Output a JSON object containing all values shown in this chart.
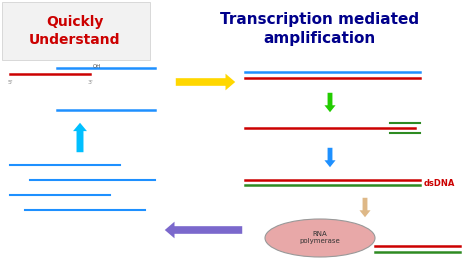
{
  "title": "Transcription mediated\namplification",
  "title_color": "#00008B",
  "title_fontsize": 11,
  "bg_color": "#FFFFFF",
  "quickly_understand": "Quickly\nUnderstand",
  "quickly_color": "#CC0000",
  "quickly_fontsize": 10,
  "dsdna_label": "dsDNA",
  "dsdna_color": "#CC0000",
  "rna_pol_label": "RNA\npolymerase",
  "rna_pol_color": "#333333",
  "blue_line": "#1E90FF",
  "red_line": "#CC0000",
  "dark_green": "#2E8B22",
  "cyan_arrow": "#00BFFF",
  "yellow_arrow": "#FFD700",
  "green_arrow": "#22CC00",
  "blue_arrow": "#1E90FF",
  "peach_arrow": "#DEB887",
  "purple_arrow": "#7B68CC"
}
